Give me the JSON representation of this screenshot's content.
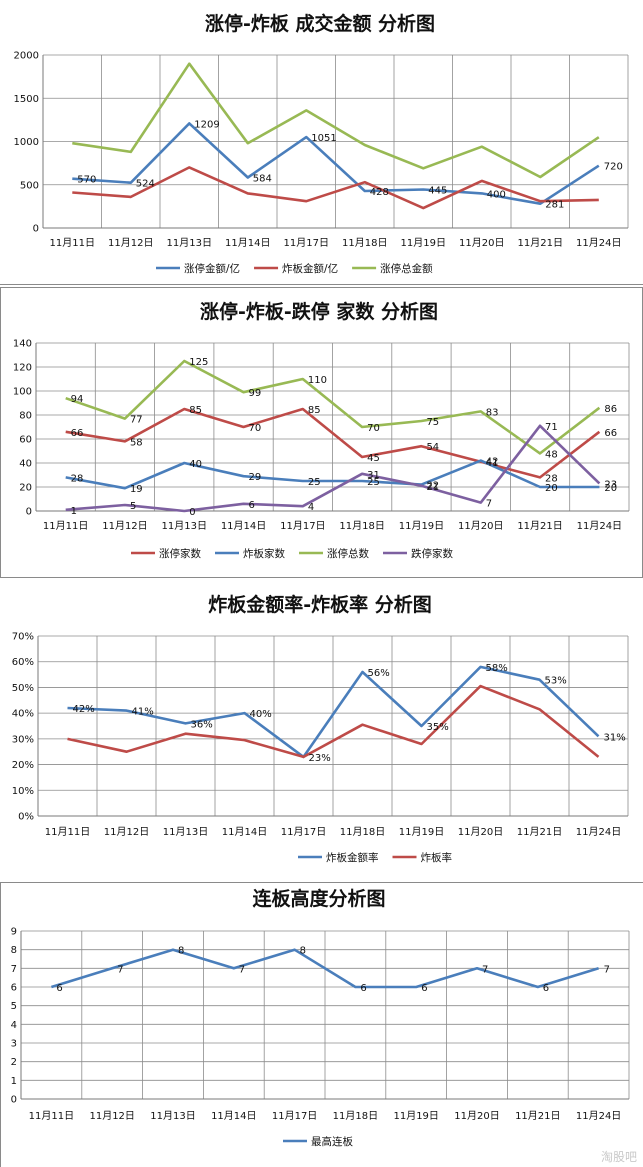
{
  "charts": [
    {
      "id": "amount",
      "title": "涨停-炸板 成交金额 分析图",
      "type": "line",
      "categories": [
        "11月11日",
        "11月12日",
        "11月13日",
        "11月14日",
        "11月17日",
        "11月18日",
        "11月19日",
        "11月20日",
        "11月21日",
        "11月24日"
      ],
      "ylim": [
        0,
        2000
      ],
      "yticks": [
        0,
        500,
        1000,
        1500,
        2000
      ],
      "yticks_text": [
        "0",
        "500",
        "1000",
        "1500",
        "2000"
      ],
      "series": [
        {
          "name": "涨停金额/亿",
          "color": "#4a7ebb",
          "values": [
            570,
            524,
            1209,
            584,
            1051,
            428,
            445,
            400,
            281,
            720
          ],
          "labels": [
            "570",
            "524",
            "1209",
            "584",
            "1051",
            "428",
            "445",
            "400",
            "281",
            "720"
          ]
        },
        {
          "name": "炸板金额/亿",
          "color": "#be4b48",
          "values": [
            410,
            360,
            700,
            400,
            310,
            530,
            230,
            545,
            310,
            325
          ],
          "labels": []
        },
        {
          "name": "涨停总金额",
          "color": "#98b954",
          "values": [
            980,
            880,
            1900,
            980,
            1360,
            960,
            690,
            940,
            590,
            1050
          ],
          "labels": []
        }
      ]
    },
    {
      "id": "count",
      "title": "涨停-炸板-跌停 家数 分析图",
      "type": "line",
      "categories": [
        "11月11日",
        "11月12日",
        "11月13日",
        "11月14日",
        "11月17日",
        "11月18日",
        "11月19日",
        "11月20日",
        "11月21日",
        "11月24日"
      ],
      "ylim": [
        0,
        140
      ],
      "yticks": [
        0,
        20,
        40,
        60,
        80,
        100,
        120,
        140
      ],
      "yticks_text": [
        "0",
        "20",
        "40",
        "60",
        "80",
        "100",
        "120",
        "140"
      ],
      "series": [
        {
          "name": "涨停家数",
          "color": "#be4b48",
          "values": [
            66,
            58,
            85,
            70,
            85,
            45,
            54,
            41,
            28,
            66
          ],
          "labels": [
            "66",
            "58",
            "85",
            "70",
            "85",
            "45",
            "54",
            "41",
            "28",
            "66"
          ]
        },
        {
          "name": "炸板家数",
          "color": "#4a7ebb",
          "values": [
            28,
            19,
            40,
            29,
            25,
            25,
            22,
            42,
            20,
            20
          ],
          "labels": [
            "28",
            "19",
            "40",
            "29",
            "25",
            "25",
            "22",
            "42",
            "20",
            "20"
          ]
        },
        {
          "name": "涨停总数",
          "color": "#98b954",
          "values": [
            94,
            77,
            125,
            99,
            110,
            70,
            75,
            83,
            48,
            86
          ],
          "labels": [
            "94",
            "77",
            "125",
            "99",
            "110",
            "70",
            "75",
            "83",
            "48",
            "86"
          ]
        },
        {
          "name": "跌停家数",
          "color": "#7d60a0",
          "values": [
            1,
            5,
            0,
            6,
            4,
            31,
            21,
            7,
            71,
            23
          ],
          "labels": [
            "1",
            "5",
            "0",
            "6",
            "4",
            "31",
            "21",
            "7",
            "71",
            "23"
          ]
        }
      ]
    },
    {
      "id": "ratio",
      "title": "炸板金额率-炸板率 分析图",
      "type": "line",
      "categories": [
        "11月11日",
        "11月12日",
        "11月13日",
        "11月14日",
        "11月17日",
        "11月18日",
        "11月19日",
        "11月20日",
        "11月21日",
        "11月24日"
      ],
      "ylim": [
        0,
        70
      ],
      "yticks": [
        0,
        10,
        20,
        30,
        40,
        50,
        60,
        70
      ],
      "yticks_text": [
        "0%",
        "10%",
        "20%",
        "30%",
        "40%",
        "50%",
        "60%",
        "70%"
      ],
      "series": [
        {
          "name": "炸板金额率",
          "color": "#4a7ebb",
          "values": [
            42,
            41,
            36,
            40,
            23,
            56,
            35,
            58,
            53,
            31
          ],
          "labels": [
            "42%",
            "41%",
            "36%",
            "40%",
            "23%",
            "56%",
            "35%",
            "58%",
            "53%",
            "31%"
          ]
        },
        {
          "name": "炸板率",
          "color": "#be4b48",
          "values": [
            30,
            25,
            32,
            29.5,
            23,
            35.5,
            28,
            50.5,
            41.5,
            23
          ],
          "labels": []
        }
      ]
    },
    {
      "id": "height",
      "title": "连板高度分析图",
      "type": "line",
      "categories": [
        "11月11日",
        "11月12日",
        "11月13日",
        "11月14日",
        "11月17日",
        "11月18日",
        "11月19日",
        "11月20日",
        "11月21日",
        "11月24日"
      ],
      "ylim": [
        0,
        9
      ],
      "yticks": [
        0,
        1,
        2,
        3,
        4,
        5,
        6,
        7,
        8,
        9
      ],
      "yticks_text": [
        "0",
        "1",
        "2",
        "3",
        "4",
        "5",
        "6",
        "7",
        "8",
        "9"
      ],
      "series": [
        {
          "name": "最高连板",
          "color": "#4a7ebb",
          "values": [
            6,
            7,
            8,
            7,
            8,
            6,
            6,
            7,
            6,
            7
          ],
          "labels": [
            "6",
            "7",
            "8",
            "7",
            "8",
            "6",
            "6",
            "7",
            "6",
            "7"
          ]
        }
      ]
    }
  ],
  "watermark": "淘股吧"
}
